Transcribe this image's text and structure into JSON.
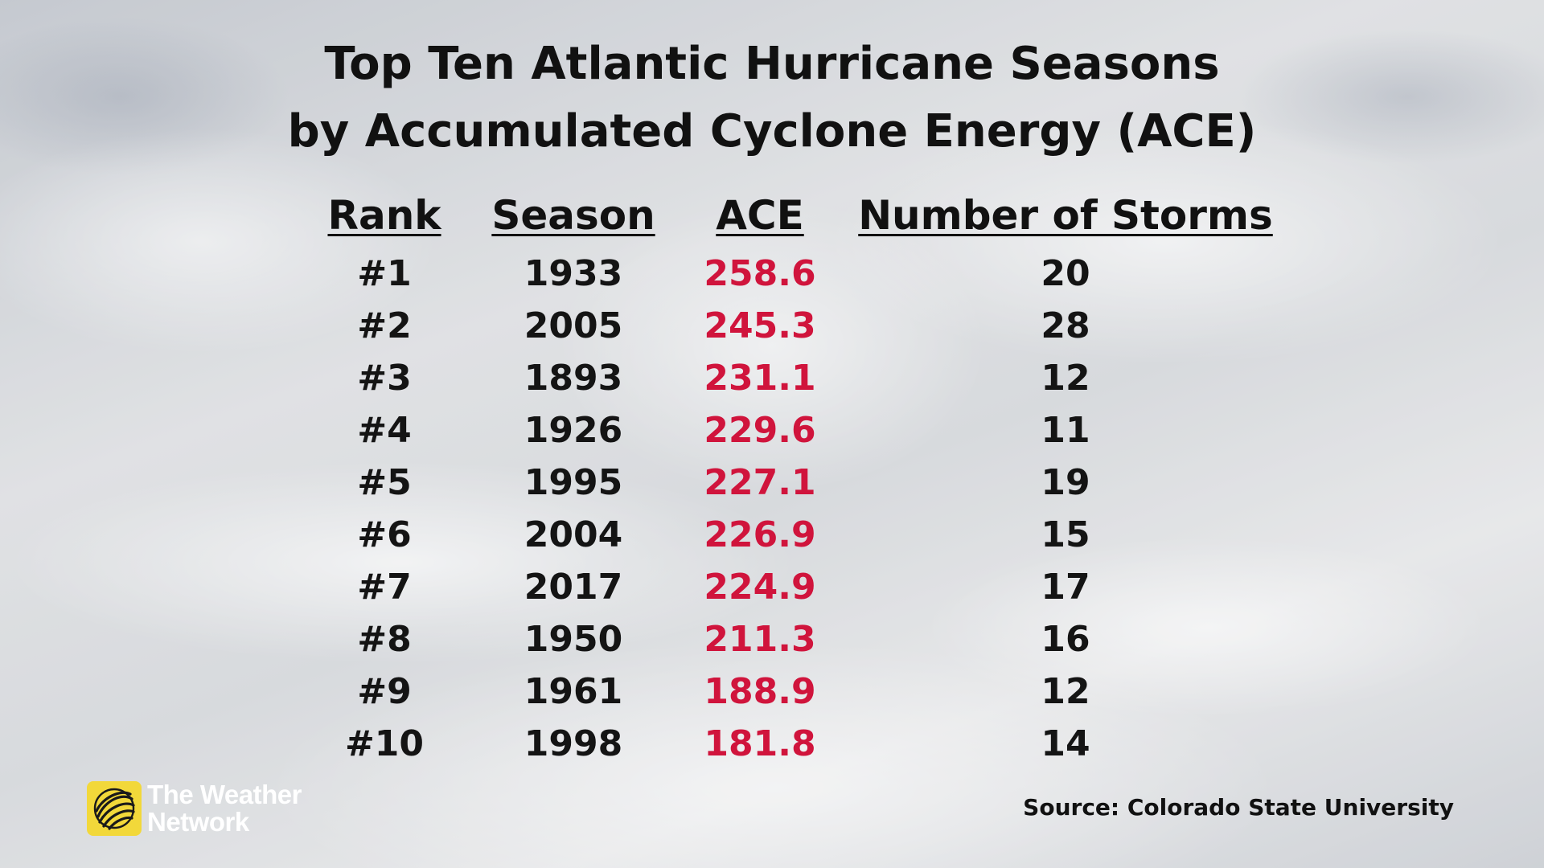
{
  "title": {
    "line1": "Top Ten Atlantic Hurricane Seasons",
    "line2": "by Accumulated Cyclone Energy (ACE)"
  },
  "chart_data": {
    "type": "table",
    "title": "Top Ten Atlantic Hurricane Seasons by Accumulated Cyclone Energy (ACE)",
    "columns": [
      "Rank",
      "Season",
      "ACE",
      "Number of Storms"
    ],
    "rows": [
      {
        "rank": "#1",
        "season": "1933",
        "ace": "258.6",
        "storms": "20"
      },
      {
        "rank": "#2",
        "season": "2005",
        "ace": "245.3",
        "storms": "28"
      },
      {
        "rank": "#3",
        "season": "1893",
        "ace": "231.1",
        "storms": "12"
      },
      {
        "rank": "#4",
        "season": "1926",
        "ace": "229.6",
        "storms": "11"
      },
      {
        "rank": "#5",
        "season": "1995",
        "ace": "227.1",
        "storms": "19"
      },
      {
        "rank": "#6",
        "season": "2004",
        "ace": "226.9",
        "storms": "15"
      },
      {
        "rank": "#7",
        "season": "2017",
        "ace": "224.9",
        "storms": "17"
      },
      {
        "rank": "#8",
        "season": "1950",
        "ace": "211.3",
        "storms": "16"
      },
      {
        "rank": "#9",
        "season": "1961",
        "ace": "188.9",
        "storms": "12"
      },
      {
        "rank": "#10",
        "season": "1998",
        "ace": "181.8",
        "storms": "14"
      }
    ],
    "ace_color": "#d0143c"
  },
  "logo": {
    "line1": "The Weather",
    "line2": "Network",
    "icon": "globe-icon",
    "color": "#f2d83a"
  },
  "source": "Source: Colorado State University"
}
